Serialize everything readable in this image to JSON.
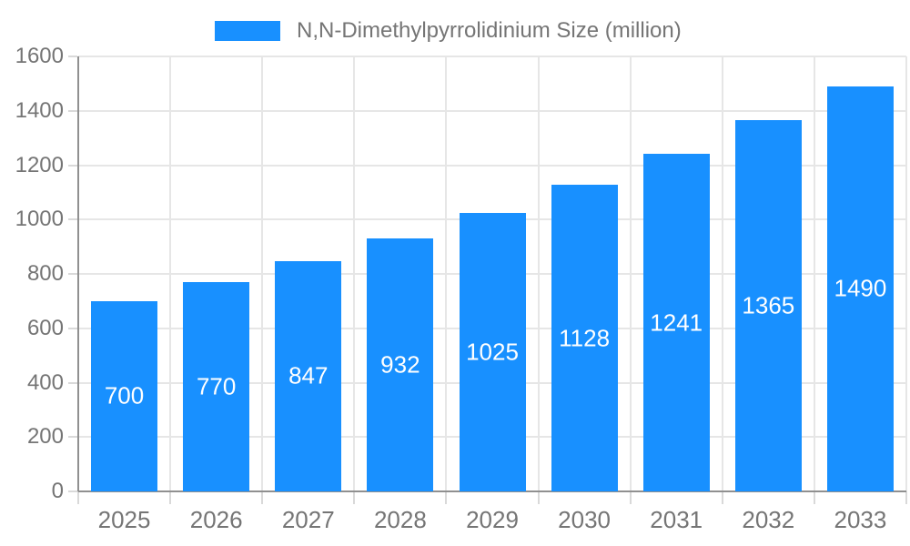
{
  "legend": {
    "label": "N,N-Dimethylpyrrolidinium Size (million)"
  },
  "chart_data": {
    "type": "bar",
    "title": "N,N-Dimethylpyrrolidinium Size (million)",
    "categories": [
      "2025",
      "2026",
      "2027",
      "2028",
      "2029",
      "2030",
      "2031",
      "2032",
      "2033"
    ],
    "values": [
      700,
      770,
      847,
      932,
      1025,
      1128,
      1241,
      1365,
      1490
    ],
    "xlabel": "",
    "ylabel": "",
    "ylim": [
      0,
      1600
    ],
    "yticks": [
      0,
      200,
      400,
      600,
      800,
      1000,
      1200,
      1400,
      1600
    ],
    "grid": true,
    "legend_position": "top",
    "value_labels": "inside-center",
    "colors": {
      "bar": "#1890ff",
      "grid": "#e6e6e6",
      "axis_line": "#909090",
      "tick": "#d9d9d9",
      "axis_text": "#757575",
      "value_text": "#ffffff",
      "background": "#ffffff"
    }
  }
}
